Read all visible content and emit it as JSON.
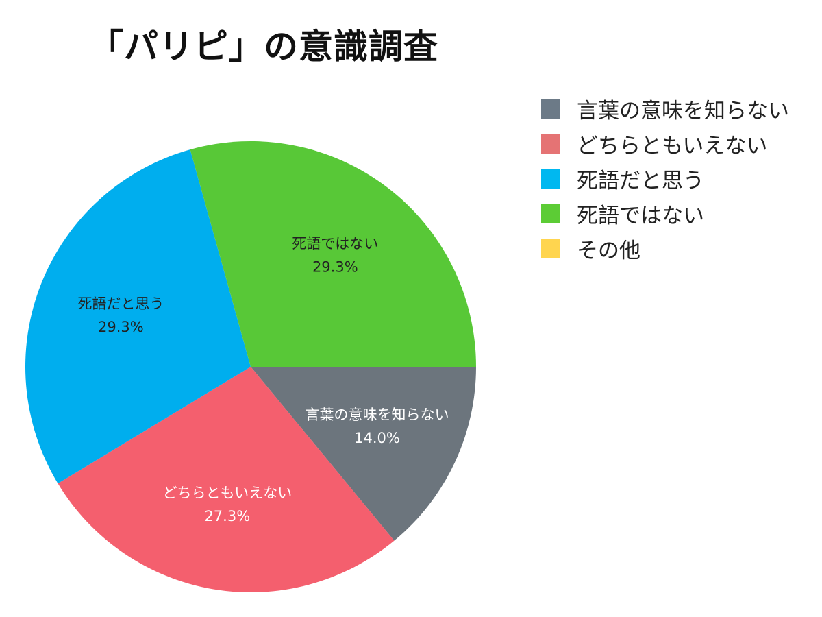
{
  "chart_data": {
    "type": "pie",
    "title": "「パリピ」の意識調査",
    "legend_position": "right",
    "slices": [
      {
        "label": "言葉の意味を知らない",
        "value": 14.0,
        "value_label": "14.0%",
        "color": "#6c757d",
        "legend_color": "#6c7a87"
      },
      {
        "label": "どちらともいえない",
        "value": 27.3,
        "value_label": "27.3%",
        "color": "#f45f6e",
        "legend_color": "#e57374"
      },
      {
        "label": "死語だと思う",
        "value": 29.3,
        "value_label": "29.3%",
        "color": "#00aeee",
        "legend_color": "#00b8f0"
      },
      {
        "label": "死語ではない",
        "value": 29.3,
        "value_label": "29.3%",
        "color": "#58c837",
        "legend_color": "#5ccc35"
      },
      {
        "label": "その他",
        "value": 0,
        "value_label": "",
        "color": "#ffd43b",
        "legend_color": "#ffd54f"
      }
    ]
  }
}
